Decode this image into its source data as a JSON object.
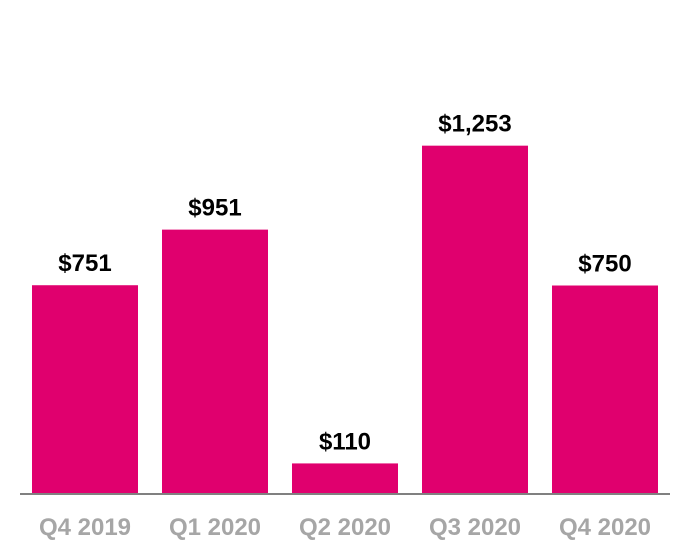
{
  "chart_data": {
    "type": "bar",
    "categories": [
      "Q4 2019",
      "Q1 2020",
      "Q2 2020",
      "Q3 2020",
      "Q4 2020"
    ],
    "values": [
      751,
      951,
      110,
      1253,
      750
    ],
    "value_labels": [
      "$751",
      "$951",
      "$110",
      "$1,253",
      "$750"
    ],
    "ylim": [
      0,
      1400
    ],
    "grid": false,
    "legend": "none",
    "colors": {
      "bar": "#E0006E",
      "baseline": "#808080",
      "tick_text": "#A6A6A6",
      "value_text": "#000000"
    }
  }
}
